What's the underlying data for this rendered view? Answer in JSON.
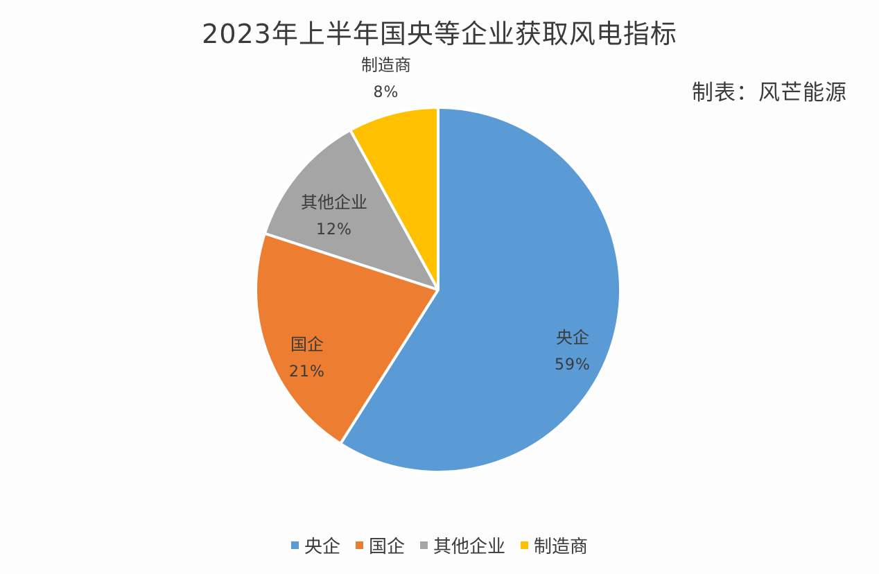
{
  "chart_data": {
    "type": "pie",
    "title": "2023年上半年国央等企业获取风电指标",
    "credit": "制表：风芒能源",
    "categories": [
      "央企",
      "国企",
      "其他企业",
      "制造商"
    ],
    "values": [
      59,
      21,
      12,
      8
    ],
    "value_labels": [
      "59%",
      "21%",
      "12%",
      "8%"
    ],
    "colors": [
      "#5B9BD5",
      "#ED7D31",
      "#A5A5A5",
      "#FFC000"
    ],
    "legend_position": "bottom",
    "start_angle": "12 o'clock",
    "direction": "clockwise"
  }
}
